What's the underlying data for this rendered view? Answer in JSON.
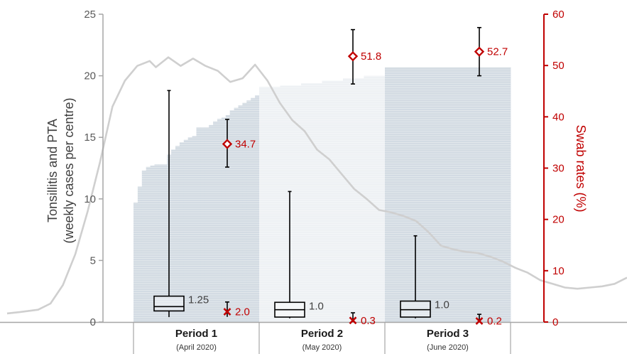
{
  "chart_data": {
    "type": "box",
    "y_left": {
      "label_line1": "Tonsillitis and PTA",
      "label_line2": "(weekly cases per centre)",
      "lim": [
        0,
        25
      ],
      "ticks": [
        0,
        5,
        10,
        15,
        20,
        25
      ]
    },
    "y_right": {
      "label": "Swab rates (%)",
      "lim": [
        0,
        60
      ],
      "ticks": [
        0,
        10,
        20,
        30,
        40,
        50,
        60
      ],
      "color": "#c00000"
    },
    "periods": [
      {
        "name": "Period 1",
        "sub": "(April 2020)",
        "box": {
          "whisker_low": 0.4,
          "q1": 0.9,
          "median": 1.25,
          "q3": 2.1,
          "whisker_high": 18.8
        },
        "median_label": "1.25",
        "swab_high": {
          "value": 34.7,
          "ci": [
            30.2,
            39.5
          ],
          "label": "34.7"
        },
        "swab_low": {
          "value": 2.0,
          "ci": [
            1.0,
            3.9
          ],
          "label": "2.0"
        },
        "bars": [
          9.7,
          11.0,
          12.3,
          12.6,
          12.7,
          12.8,
          12.8,
          12.8,
          13.6,
          14.0,
          14.3,
          14.6,
          14.8,
          15.0,
          15.1,
          15.8,
          15.8,
          15.8,
          16.0,
          16.3,
          16.5,
          16.6,
          16.8,
          17.2,
          17.4,
          17.6,
          17.8,
          18.0,
          18.2,
          18.4
        ]
      },
      {
        "name": "Period 2",
        "sub": "(May 2020)",
        "box": {
          "whisker_low": 0.3,
          "q1": 0.4,
          "median": 1.0,
          "q3": 1.6,
          "whisker_high": 10.6
        },
        "median_label": "1.0",
        "swab_high": {
          "value": 51.8,
          "ci": [
            46.4,
            57.0
          ],
          "label": "51.8"
        },
        "swab_low": {
          "value": 0.3,
          "ci": [
            0.0,
            1.8
          ],
          "label": "0.3"
        },
        "bars": [
          19.1,
          19.2,
          19.4,
          19.6,
          19.8,
          20.0
        ]
      },
      {
        "name": "Period 3",
        "sub": "(June 2020)",
        "box": {
          "whisker_low": 0.3,
          "q1": 0.4,
          "median": 1.0,
          "q3": 1.7,
          "whisker_high": 7.0
        },
        "median_label": "1.0",
        "swab_high": {
          "value": 52.7,
          "ci": [
            48.0,
            57.4
          ],
          "label": "52.7"
        },
        "swab_low": {
          "value": 0.2,
          "ci": [
            0.0,
            1.5
          ],
          "label": "0.2"
        },
        "bars": [
          20.7
        ]
      }
    ],
    "trend_line": {
      "x": [
        0,
        0.02,
        0.05,
        0.07,
        0.09,
        0.11,
        0.13,
        0.15,
        0.17,
        0.19,
        0.21,
        0.23,
        0.24,
        0.26,
        0.28,
        0.3,
        0.32,
        0.34,
        0.36,
        0.38,
        0.4,
        0.42,
        0.44,
        0.46,
        0.48,
        0.5,
        0.52,
        0.54,
        0.56,
        0.58,
        0.6,
        0.62,
        0.64,
        0.66,
        0.68,
        0.7,
        0.72,
        0.74,
        0.76,
        0.78,
        0.8,
        0.82,
        0.84,
        0.86,
        0.88,
        0.9,
        0.92,
        0.94,
        0.96,
        0.98,
        1.0
      ],
      "y": [
        0.7,
        0.8,
        1.0,
        1.5,
        3.0,
        5.5,
        9.0,
        13.0,
        17.5,
        19.6,
        20.8,
        21.2,
        20.7,
        21.5,
        20.8,
        21.4,
        20.8,
        20.4,
        19.5,
        19.8,
        20.9,
        19.6,
        17.8,
        16.4,
        15.5,
        14.0,
        13.2,
        12.0,
        10.8,
        10.0,
        9.1,
        8.9,
        8.6,
        8.2,
        7.3,
        6.2,
        5.9,
        5.7,
        5.6,
        5.3,
        4.9,
        4.4,
        4.0,
        3.4,
        3.1,
        2.8,
        2.7,
        2.8,
        2.9,
        3.1,
        3.6
      ]
    },
    "legend": "none",
    "grid": false
  }
}
